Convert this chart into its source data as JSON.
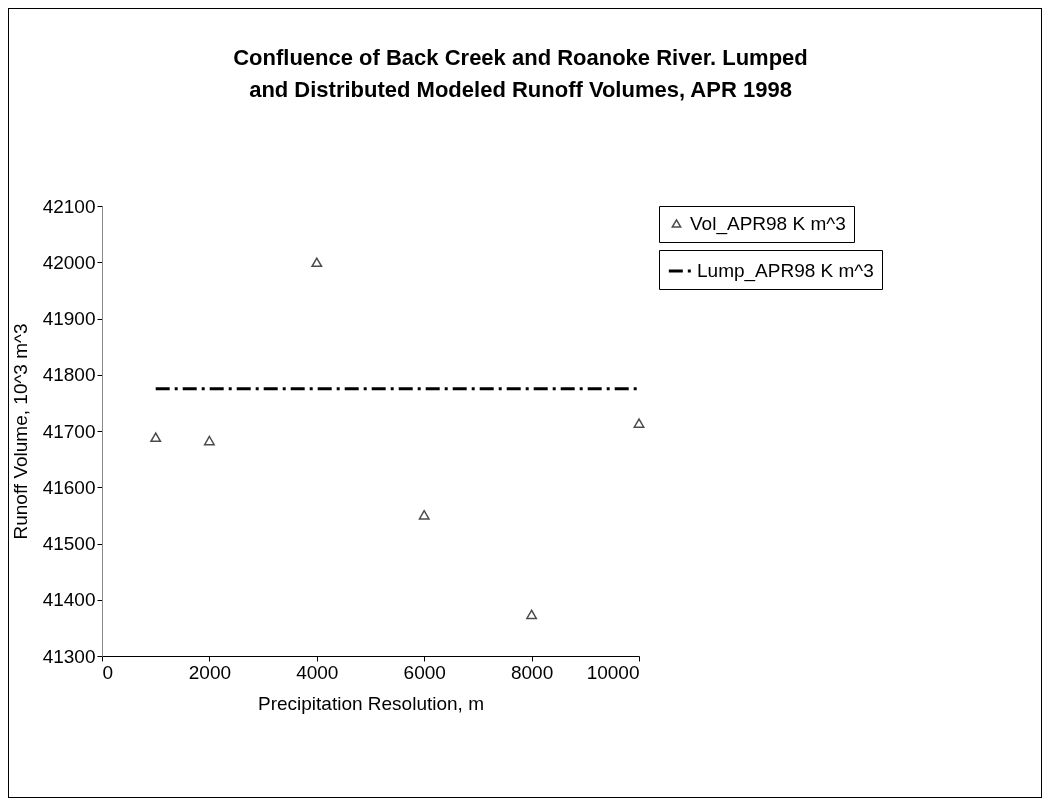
{
  "chart_data": {
    "type": "scatter",
    "title": "Confluence of Back Creek and Roanoke River.  Lumped and Distributed Modeled Runoff Volumes, APR 1998",
    "xlabel": "Precipitation Resolution, m",
    "ylabel": "Runoff Volume, 10^3 m^3",
    "x": [
      1000,
      2000,
      4000,
      6000,
      8000,
      10000
    ],
    "series": [
      {
        "name": "Vol_APR98 K m^3",
        "color": "#000000",
        "marker": "triangle",
        "values": [
          41689,
          41683,
          42000,
          41551,
          41374,
          41714
        ]
      },
      {
        "name": "Lump_APR98 K m^3",
        "type": "line",
        "color": "#000000",
        "marker": "none",
        "line_style": "dashed",
        "values": [
          41775,
          41775,
          41775,
          41775,
          41775,
          41775
        ]
      }
    ],
    "xlim": [
      0,
      10000
    ],
    "xticks": [
      0,
      2000,
      4000,
      6000,
      8000,
      10000
    ],
    "ylim": [
      41300,
      42100
    ],
    "yticks": [
      41300,
      41400,
      41500,
      41600,
      41700,
      41800,
      41900,
      42000,
      42100
    ],
    "grid": false,
    "legend": "right"
  }
}
